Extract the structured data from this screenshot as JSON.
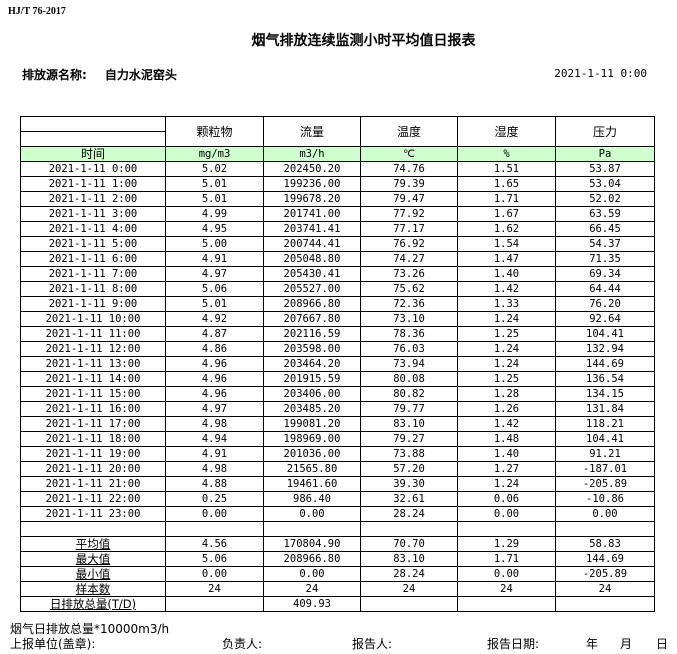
{
  "standard": "HJ/T 76-2017",
  "title": "烟气排放连续监测小时平均值日报表",
  "source_label": "排放源名称:",
  "source_name": "自力水泥窑头",
  "report_datetime": "2021-1-11 0:00",
  "header_fill_color": "#ccffcc",
  "columns": [
    {
      "name": "颗粒物",
      "unit": "mg/m3"
    },
    {
      "name": "流量",
      "unit": "m3/h"
    },
    {
      "name": "温度",
      "unit": "℃"
    },
    {
      "name": "湿度",
      "unit": "%"
    },
    {
      "name": "压力",
      "unit": "Pa"
    }
  ],
  "time_header": "时间",
  "rows": [
    [
      "2021-1-11 0:00",
      "5.02",
      "202450.20",
      "74.76",
      "1.51",
      "53.87"
    ],
    [
      "2021-1-11 1:00",
      "5.01",
      "199236.00",
      "79.39",
      "1.65",
      "53.04"
    ],
    [
      "2021-1-11 2:00",
      "5.01",
      "199678.20",
      "79.47",
      "1.71",
      "52.02"
    ],
    [
      "2021-1-11 3:00",
      "4.99",
      "201741.00",
      "77.92",
      "1.67",
      "63.59"
    ],
    [
      "2021-1-11 4:00",
      "4.95",
      "203741.41",
      "77.17",
      "1.62",
      "66.45"
    ],
    [
      "2021-1-11 5:00",
      "5.00",
      "200744.41",
      "76.92",
      "1.54",
      "54.37"
    ],
    [
      "2021-1-11 6:00",
      "4.91",
      "205048.80",
      "74.27",
      "1.47",
      "71.35"
    ],
    [
      "2021-1-11 7:00",
      "4.97",
      "205430.41",
      "73.26",
      "1.40",
      "69.34"
    ],
    [
      "2021-1-11 8:00",
      "5.06",
      "205527.00",
      "75.62",
      "1.42",
      "64.44"
    ],
    [
      "2021-1-11 9:00",
      "5.01",
      "208966.80",
      "72.36",
      "1.33",
      "76.20"
    ],
    [
      "2021-1-11 10:00",
      "4.92",
      "207667.80",
      "73.10",
      "1.24",
      "92.64"
    ],
    [
      "2021-1-11 11:00",
      "4.87",
      "202116.59",
      "78.36",
      "1.25",
      "104.41"
    ],
    [
      "2021-1-11 12:00",
      "4.86",
      "203598.00",
      "76.03",
      "1.24",
      "132.94"
    ],
    [
      "2021-1-11 13:00",
      "4.96",
      "203464.20",
      "73.94",
      "1.24",
      "144.69"
    ],
    [
      "2021-1-11 14:00",
      "4.96",
      "201915.59",
      "80.08",
      "1.25",
      "136.54"
    ],
    [
      "2021-1-11 15:00",
      "4.96",
      "203406.00",
      "80.82",
      "1.28",
      "134.15"
    ],
    [
      "2021-1-11 16:00",
      "4.97",
      "203485.20",
      "79.77",
      "1.26",
      "131.84"
    ],
    [
      "2021-1-11 17:00",
      "4.98",
      "199081.20",
      "83.10",
      "1.42",
      "118.21"
    ],
    [
      "2021-1-11 18:00",
      "4.94",
      "198969.00",
      "79.27",
      "1.48",
      "104.41"
    ],
    [
      "2021-1-11 19:00",
      "4.91",
      "201036.00",
      "73.88",
      "1.40",
      "91.21"
    ],
    [
      "2021-1-11 20:00",
      "4.98",
      "21565.80",
      "57.20",
      "1.27",
      "-187.01"
    ],
    [
      "2021-1-11 21:00",
      "4.88",
      "19461.60",
      "39.30",
      "1.24",
      "-205.89"
    ],
    [
      "2021-1-11 22:00",
      "0.25",
      "986.40",
      "32.61",
      "0.06",
      "-10.86"
    ],
    [
      "2021-1-11 23:00",
      "0.00",
      "0.00",
      "28.24",
      "0.00",
      "0.00"
    ]
  ],
  "summary": [
    [
      "平均值",
      "4.56",
      "170804.90",
      "70.70",
      "1.29",
      "58.83"
    ],
    [
      "最大值",
      "5.06",
      "208966.80",
      "83.10",
      "1.71",
      "144.69"
    ],
    [
      "最小值",
      "0.00",
      "0.00",
      "28.24",
      "0.00",
      "-205.89"
    ],
    [
      "样本数",
      "24",
      "24",
      "24",
      "24",
      "24"
    ],
    [
      "日排放总量(T/D)",
      "",
      "409.93",
      "",
      "",
      ""
    ]
  ],
  "footer": {
    "note": "烟气日排放总量*10000m3/h",
    "unit_label": "上报单位(盖章):",
    "responsible_label": "负责人:",
    "reporter_label": "报告人:",
    "date_label": "报告日期:",
    "year": "年",
    "month": "月",
    "day": "日"
  }
}
